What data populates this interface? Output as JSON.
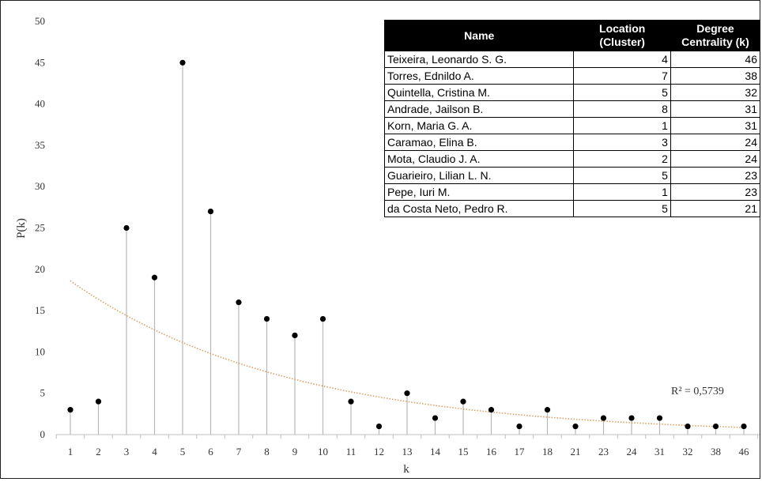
{
  "chart_data": {
    "type": "scatter",
    "style": "stem",
    "xlabel": "k",
    "ylabel": "P(k)",
    "ylim": [
      0,
      50
    ],
    "yticks": [
      0,
      5,
      10,
      15,
      20,
      25,
      30,
      35,
      40,
      45,
      50
    ],
    "categories": [
      "1",
      "2",
      "3",
      "4",
      "5",
      "6",
      "7",
      "8",
      "9",
      "10",
      "11",
      "12",
      "13",
      "14",
      "15",
      "16",
      "17",
      "18",
      "21",
      "23",
      "24",
      "31",
      "32",
      "38",
      "46"
    ],
    "values": [
      3,
      4,
      25,
      19,
      45,
      27,
      16,
      14,
      12,
      14,
      4,
      1,
      5,
      2,
      4,
      3,
      1,
      3,
      1,
      2,
      2,
      2,
      1,
      1,
      1
    ],
    "trendline": {
      "type": "exponential",
      "start": 18.6,
      "decay": 0.128,
      "color": "#d9a066"
    },
    "r2_label": "R² = 0,5739",
    "grid": false,
    "colors": {
      "point": "#000000",
      "stem": "#b8b8b8",
      "axis": "#bfbfbf"
    }
  },
  "table": {
    "headers": {
      "name": "Name",
      "location": [
        "Location",
        "(Cluster)"
      ],
      "degree": [
        "Degree",
        "Centrality (k)"
      ]
    },
    "rows": [
      {
        "name": "Teixeira, Leonardo S. G.",
        "location": "4",
        "degree": "46"
      },
      {
        "name": "Torres, Ednildo A.",
        "location": "7",
        "degree": "38"
      },
      {
        "name": "Quintella, Cristina M.",
        "location": "5",
        "degree": "32"
      },
      {
        "name": "Andrade, Jailson B.",
        "location": "8",
        "degree": "31"
      },
      {
        "name": "Korn, Maria G. A.",
        "location": "1",
        "degree": "31"
      },
      {
        "name": "Caramao, Elina B.",
        "location": "3",
        "degree": "24"
      },
      {
        "name": "Mota, Claudio J. A.",
        "location": "2",
        "degree": "24"
      },
      {
        "name": "Guarieiro, Lilian L. N.",
        "location": "5",
        "degree": "23"
      },
      {
        "name": "Pepe, Iuri M.",
        "location": "1",
        "degree": "23"
      },
      {
        "name": "da Costa Neto, Pedro R.",
        "location": "5",
        "degree": "21"
      }
    ]
  }
}
